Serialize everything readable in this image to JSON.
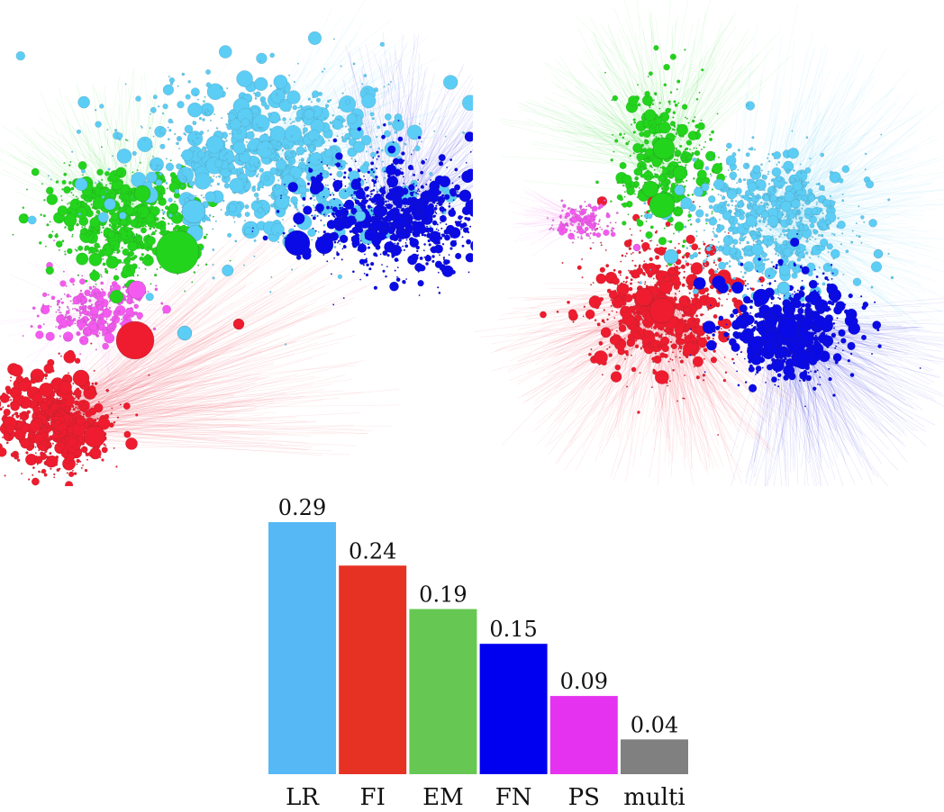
{
  "palette": {
    "LR": "#56b9f5",
    "FI": "#e63223",
    "EM": "#66c853",
    "FN": "#0000f0",
    "PS": "#e532f0",
    "multi": "#808080"
  },
  "networks": [
    {
      "name": "left-network",
      "community_colors": [
        "#5ccdf5",
        "#22d41c",
        "#0a0ae6",
        "#f45af0",
        "#ee1c2e"
      ]
    },
    {
      "name": "right-network",
      "community_colors": [
        "#5ccdf5",
        "#22d41c",
        "#0a0ae6",
        "#f45af0",
        "#ee1c2e"
      ]
    }
  ],
  "chart_data": {
    "type": "bar",
    "categories": [
      "LR",
      "FI",
      "EM",
      "FN",
      "PS",
      "multi"
    ],
    "values": [
      0.29,
      0.24,
      0.19,
      0.15,
      0.09,
      0.04
    ],
    "value_labels": [
      "0.29",
      "0.24",
      "0.19",
      "0.15",
      "0.09",
      "0.04"
    ],
    "colors": [
      "#56b9f5",
      "#e63223",
      "#66c853",
      "#0000f0",
      "#e532f0",
      "#808080"
    ],
    "title": "",
    "xlabel": "",
    "ylabel": "",
    "ylim": [
      0,
      0.29
    ],
    "grid": false,
    "legend": "none"
  }
}
